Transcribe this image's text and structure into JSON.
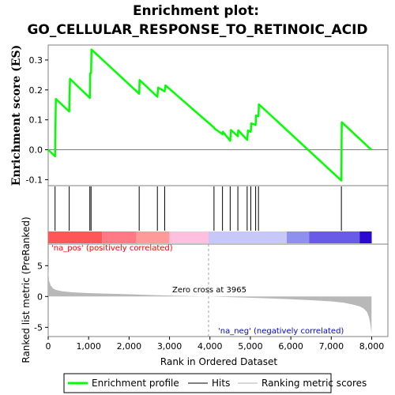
{
  "chart_data": {
    "type": "line",
    "title_line1": "Enrichment plot:",
    "title_line2": "GO_CELLULAR_RESPONSE_TO_RETINOIC_ACID",
    "es_panel": {
      "ylabel": "Enrichment score (ES)",
      "ylim": [
        -0.12,
        0.35
      ],
      "yticks": [
        -0.1,
        0.0,
        0.1,
        0.2,
        0.3
      ],
      "ytick_labels": [
        "-0.1",
        "0.0",
        "0.1",
        "0.2",
        "0.3"
      ],
      "series": [
        {
          "name": "Enrichment profile",
          "color": "#00ff00",
          "x": [
            0,
            170,
            190,
            520,
            540,
            1030,
            1040,
            1060,
            1070,
            2250,
            2260,
            2700,
            2720,
            2880,
            2900,
            4100,
            4120,
            4310,
            4320,
            4500,
            4520,
            4690,
            4700,
            4920,
            4940,
            5010,
            5020,
            5130,
            5140,
            5200,
            5210,
            7250,
            7260,
            7990
          ],
          "y": [
            0.0,
            -0.022,
            0.17,
            0.128,
            0.237,
            0.173,
            0.255,
            0.257,
            0.335,
            0.187,
            0.233,
            0.177,
            0.208,
            0.195,
            0.215,
            0.074,
            0.07,
            0.052,
            0.06,
            0.03,
            0.066,
            0.045,
            0.065,
            0.033,
            0.064,
            0.06,
            0.088,
            0.083,
            0.115,
            0.112,
            0.152,
            -0.103,
            0.092,
            0.0
          ]
        }
      ]
    },
    "hits_panel": {
      "hit_positions": [
        170,
        520,
        1030,
        1060,
        2250,
        2700,
        2880,
        4100,
        4310,
        4500,
        4690,
        4920,
        5010,
        5130,
        5200,
        7250
      ],
      "color_bar_segments": [
        {
          "from": 0,
          "to": 1330,
          "color": "#ff5757"
        },
        {
          "from": 1330,
          "to": 2180,
          "color": "#ff7a85"
        },
        {
          "from": 2180,
          "to": 3000,
          "color": "#ff9a9a"
        },
        {
          "from": 3000,
          "to": 3965,
          "color": "#ffc0e0"
        },
        {
          "from": 3965,
          "to": 5900,
          "color": "#c8c8f8"
        },
        {
          "from": 5900,
          "to": 6450,
          "color": "#8f8fef"
        },
        {
          "from": 6450,
          "to": 7700,
          "color": "#6a5be6"
        },
        {
          "from": 7700,
          "to": 8000,
          "color": "#2a0ad0"
        }
      ]
    },
    "rank_panel": {
      "ylabel": "Ranked list metric (PreRanked)",
      "ylim": [
        -6.5,
        8.5
      ],
      "yticks": [
        -5,
        0,
        5
      ],
      "ytick_labels": [
        "-5",
        "0",
        "5"
      ],
      "metric_profile": {
        "x": [
          0,
          20,
          60,
          120,
          200,
          350,
          600,
          1000,
          1500,
          2000,
          2500,
          3000,
          3500,
          3965,
          4500,
          5000,
          5500,
          6000,
          6500,
          7000,
          7300,
          7500,
          7700,
          7800,
          7880,
          7930,
          7960,
          7980,
          7995
        ],
        "y": [
          4.6,
          2.6,
          1.8,
          1.3,
          1.05,
          0.85,
          0.68,
          0.55,
          0.45,
          0.36,
          0.25,
          0.15,
          0.07,
          0.0,
          -0.1,
          -0.2,
          -0.32,
          -0.45,
          -0.6,
          -0.8,
          -1.0,
          -1.25,
          -1.6,
          -1.95,
          -2.5,
          -3.3,
          -4.3,
          -5.2,
          -6.0
        ]
      },
      "zero_cross_label": "Zero cross at 3965",
      "zero_cross_x": 3965,
      "na_pos_label": "'na_pos' (positively correlated)",
      "na_neg_label": "'na_neg' (negatively correlated)"
    },
    "xaxis": {
      "xlabel": "Rank in Ordered Dataset",
      "xlim": [
        0,
        8400
      ],
      "xticks": [
        0,
        1000,
        2000,
        3000,
        4000,
        5000,
        6000,
        7000,
        8000
      ],
      "xtick_labels": [
        "0",
        "1,000",
        "2,000",
        "3,000",
        "4,000",
        "5,000",
        "6,000",
        "7,000",
        "8,000"
      ]
    },
    "legend": {
      "placement": "bottom",
      "items": [
        {
          "label": "Enrichment profile",
          "color": "#00ff00"
        },
        {
          "label": "Hits",
          "color": "#000000"
        },
        {
          "label": "Ranking metric scores",
          "color": "#c0c0c0"
        }
      ]
    }
  }
}
